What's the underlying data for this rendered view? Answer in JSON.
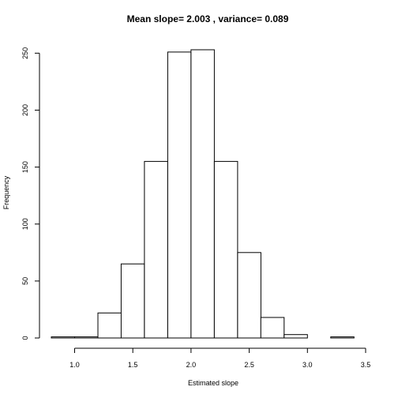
{
  "chart_data": {
    "type": "bar",
    "title": "Mean slope= 2.003 , variance= 0.089",
    "xlabel": "Estimated slope",
    "ylabel": "Frequency",
    "bin_edges": [
      0.8,
      1.0,
      1.2,
      1.4,
      1.6,
      1.8,
      2.0,
      2.2,
      2.4,
      2.6,
      2.8,
      3.0,
      3.2,
      3.4
    ],
    "counts": [
      1,
      1,
      22,
      65,
      155,
      251,
      253,
      155,
      75,
      18,
      3,
      0,
      1
    ],
    "xticks": [
      1.0,
      1.5,
      2.0,
      2.5,
      3.0,
      3.5
    ],
    "xtick_labels": [
      "1.0",
      "1.5",
      "2.0",
      "2.5",
      "3.0",
      "3.5"
    ],
    "yticks": [
      0,
      50,
      100,
      150,
      200,
      250
    ],
    "ytick_labels": [
      "0",
      "50",
      "100",
      "150",
      "200",
      "250"
    ],
    "xlim": [
      0.8,
      3.5
    ],
    "ylim": [
      0,
      253
    ],
    "grid": false,
    "legend": "none"
  }
}
